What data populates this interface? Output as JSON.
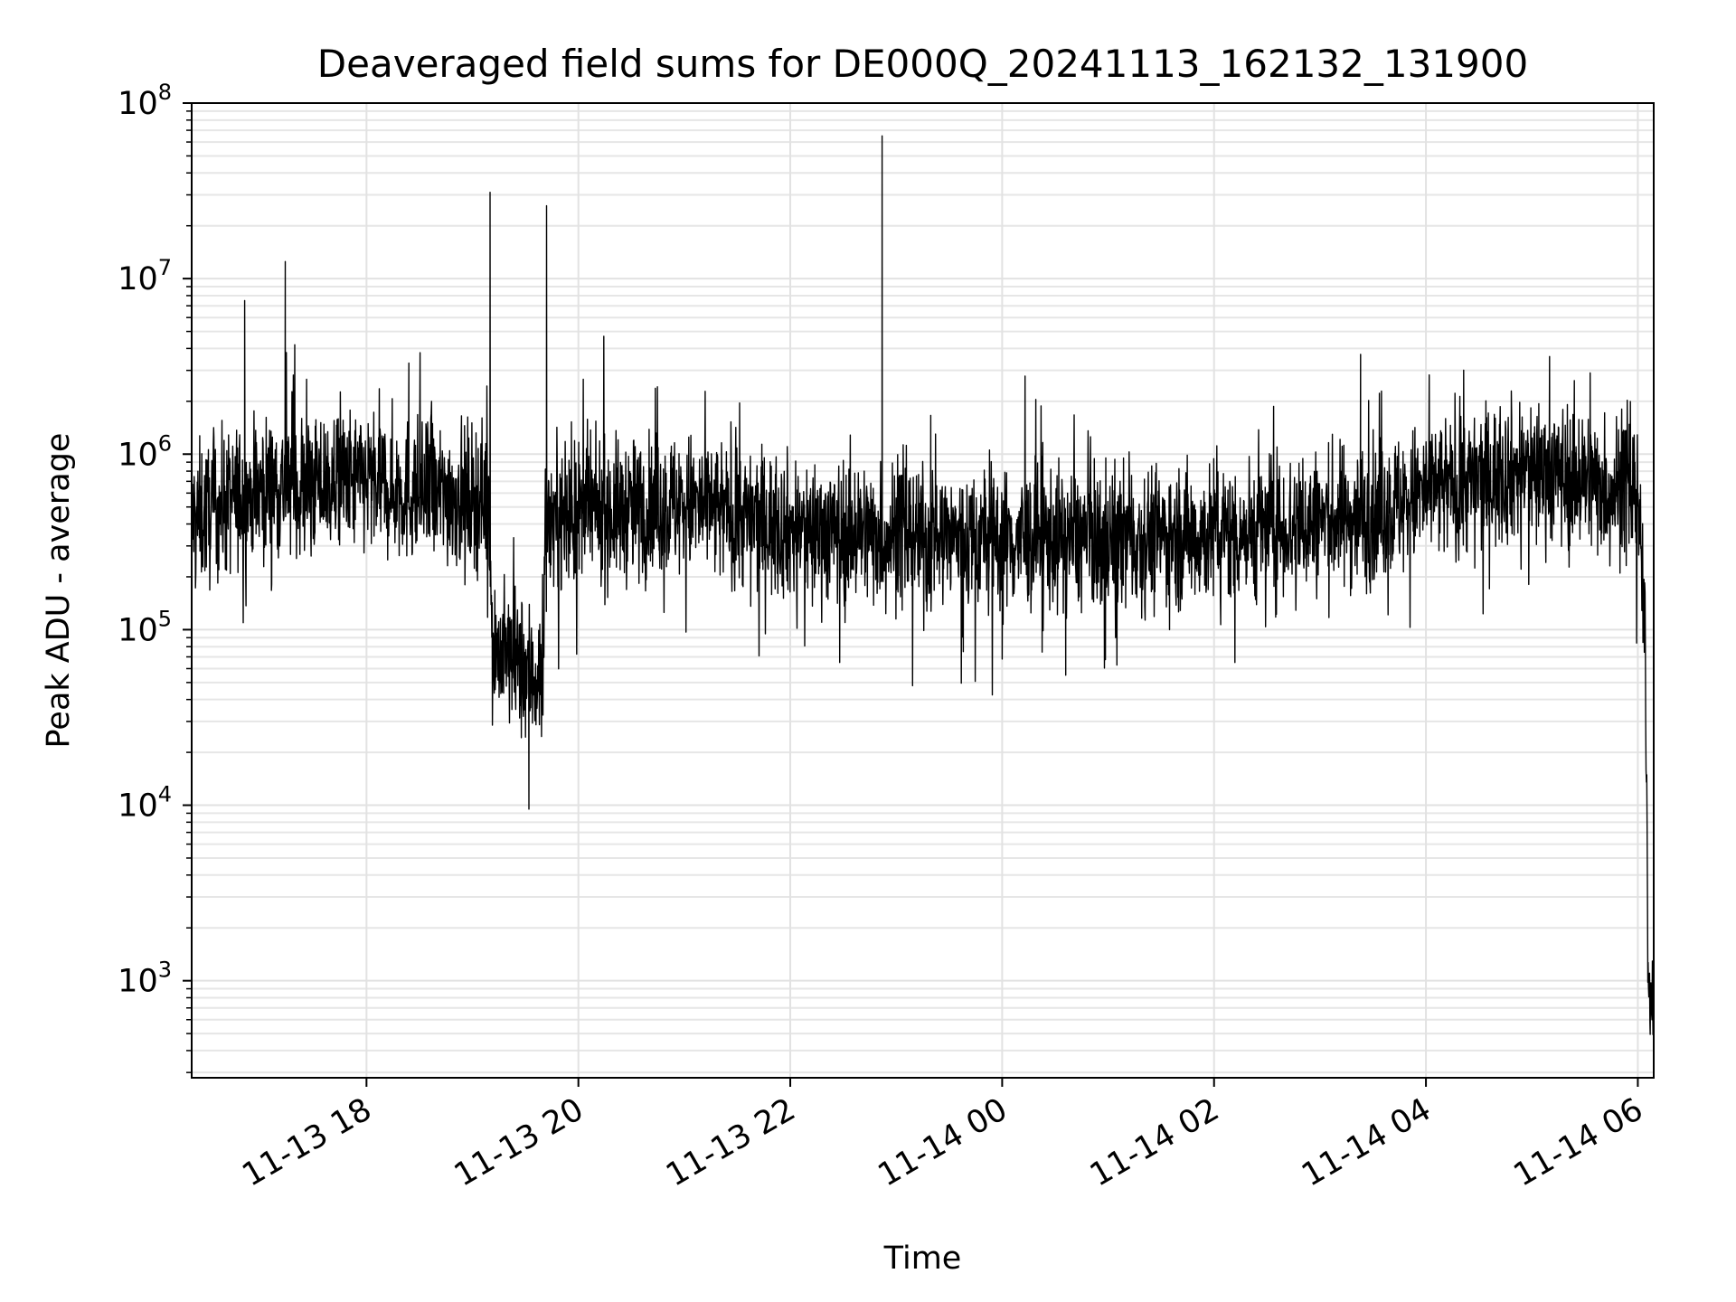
{
  "chart_data": {
    "type": "line",
    "title": "Deaveraged field sums for DE000Q_20241113_162132_131900",
    "xlabel": "Time",
    "ylabel": "Peak ADU - average",
    "yscale": "log",
    "ylim": [
      280,
      100000000
    ],
    "xlim": [
      "2024-11-13T16:21",
      "2024-11-14T06:09"
    ],
    "grid": "major and minor, light gray",
    "line_color": "#000000",
    "x_ticks": [
      {
        "t": "2024-11-13T18:00",
        "label": "11-13 18"
      },
      {
        "t": "2024-11-13T20:00",
        "label": "11-13 20"
      },
      {
        "t": "2024-11-13T22:00",
        "label": "11-13 22"
      },
      {
        "t": "2024-11-14T00:00",
        "label": "11-14 00"
      },
      {
        "t": "2024-11-14T02:00",
        "label": "11-14 02"
      },
      {
        "t": "2024-11-14T04:00",
        "label": "11-14 04"
      },
      {
        "t": "2024-11-14T06:00",
        "label": "11-14 06"
      }
    ],
    "y_ticks": [
      {
        "v": 1000,
        "base": "10",
        "exp": "3"
      },
      {
        "v": 10000,
        "base": "10",
        "exp": "4"
      },
      {
        "v": 100000,
        "base": "10",
        "exp": "5"
      },
      {
        "v": 1000000,
        "base": "10",
        "exp": "6"
      },
      {
        "v": 10000000,
        "base": "10",
        "exp": "7"
      },
      {
        "v": 100000000,
        "base": "10",
        "exp": "8"
      }
    ],
    "series": [
      {
        "baseline": [
          {
            "t": "2024-11-13T16:21",
            "v": 420000
          },
          {
            "t": "2024-11-13T17:00",
            "v": 650000
          },
          {
            "t": "2024-11-13T18:00",
            "v": 700000
          },
          {
            "t": "2024-11-13T18:30",
            "v": 600000
          },
          {
            "t": "2024-11-13T19:10",
            "v": 560000
          },
          {
            "t": "2024-11-13T19:11",
            "v": 80000
          },
          {
            "t": "2024-11-13T19:40",
            "v": 50000
          },
          {
            "t": "2024-11-13T19:41",
            "v": 420000
          },
          {
            "t": "2024-11-13T21:00",
            "v": 520000
          },
          {
            "t": "2024-11-13T22:00",
            "v": 380000
          },
          {
            "t": "2024-11-14T00:00",
            "v": 320000
          },
          {
            "t": "2024-11-14T02:00",
            "v": 350000
          },
          {
            "t": "2024-11-14T03:30",
            "v": 450000
          },
          {
            "t": "2024-11-14T04:00",
            "v": 600000
          },
          {
            "t": "2024-11-14T05:00",
            "v": 850000
          },
          {
            "t": "2024-11-14T06:00",
            "v": 600000
          },
          {
            "t": "2024-11-14T06:04",
            "v": 100000
          },
          {
            "t": "2024-11-14T06:06",
            "v": 900
          },
          {
            "t": "2024-11-14T06:09",
            "v": 700
          }
        ],
        "spikes": [
          {
            "t": "2024-11-13T16:51",
            "v": 7500000
          },
          {
            "t": "2024-11-13T17:14",
            "v": 12500000
          },
          {
            "t": "2024-11-13T18:24",
            "v": 3300000
          },
          {
            "t": "2024-11-13T19:10",
            "v": 31000000
          },
          {
            "t": "2024-11-13T19:42",
            "v": 26000000
          },
          {
            "t": "2024-11-13T22:52",
            "v": 65000000
          },
          {
            "t": "2024-11-14T03:23",
            "v": 3700000
          },
          {
            "t": "2024-11-14T05:10",
            "v": 3600000
          },
          {
            "t": "2024-11-14T05:33",
            "v": 2900000
          },
          {
            "t": "2024-11-13T19:32",
            "v": 9500
          },
          {
            "t": "2024-11-14T00:36",
            "v": 55000
          },
          {
            "t": "2024-11-13T22:28",
            "v": 65000
          },
          {
            "t": "2024-11-13T23:38",
            "v": 75000
          },
          {
            "t": "2024-11-14T00:00",
            "v": 68000
          }
        ]
      }
    ]
  }
}
